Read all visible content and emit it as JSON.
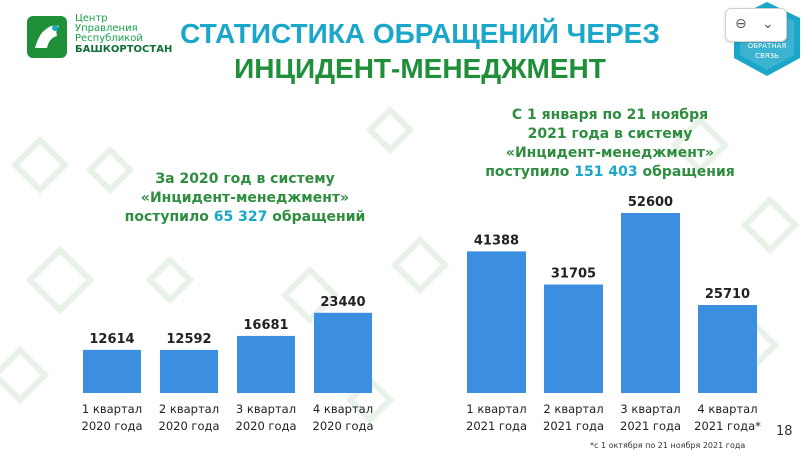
{
  "title_line1": "СТАТИСТИКА ОБРАЩЕНИЙ ЧЕРЕЗ",
  "title_line2": "ИНЦИДЕНТ-МЕНЕДЖМЕНТ",
  "logo": {
    "line1": "Центр",
    "line2": "Управления",
    "line3": "Республикой",
    "line4": "БАШКОРТОСТАН",
    "colors": {
      "green": "#1f8f3a",
      "teal": "#1aa7c9"
    }
  },
  "badge": {
    "text1": "ОБРАТНАЯ",
    "text2": "СВЯЗЬ"
  },
  "note_2020": {
    "line1": "За 2020 год в систему",
    "line2": "«Инцидент-менеджмент»",
    "line3_prefix": "поступило ",
    "count": "65 327",
    "line3_suffix": " обращений"
  },
  "note_2021": {
    "line1": "С 1 января по 21 ноября",
    "line2": "2021 года в систему",
    "line3": "«Инцидент-менеджмент»",
    "line4_prefix": "поступило ",
    "count": "151 403",
    "line4_suffix": " обращения"
  },
  "chart_data": [
    {
      "type": "bar",
      "categories": [
        "1 квартал\n2020 года",
        "2 квартал\n2020 года",
        "3 квартал\n2020 года",
        "4 квартал\n2020 года"
      ],
      "values": [
        12614,
        12592,
        16681,
        23440
      ],
      "bar_color": "#3c8fe0"
    },
    {
      "type": "bar",
      "categories": [
        "1 квартал\n2021 года",
        "2 квартал\n2021 года",
        "3 квартал\n2021 года",
        "4 квартал\n2021 года*"
      ],
      "values": [
        41388,
        31705,
        52600,
        25710
      ],
      "bar_color": "#3c8fe0"
    }
  ],
  "footnote": "*с 1 октября по 21 ноября 2021 года",
  "page_number": "18",
  "browser_widget": {
    "link_icon": "link-icon",
    "chevron_icon": "chevron-down-icon"
  }
}
